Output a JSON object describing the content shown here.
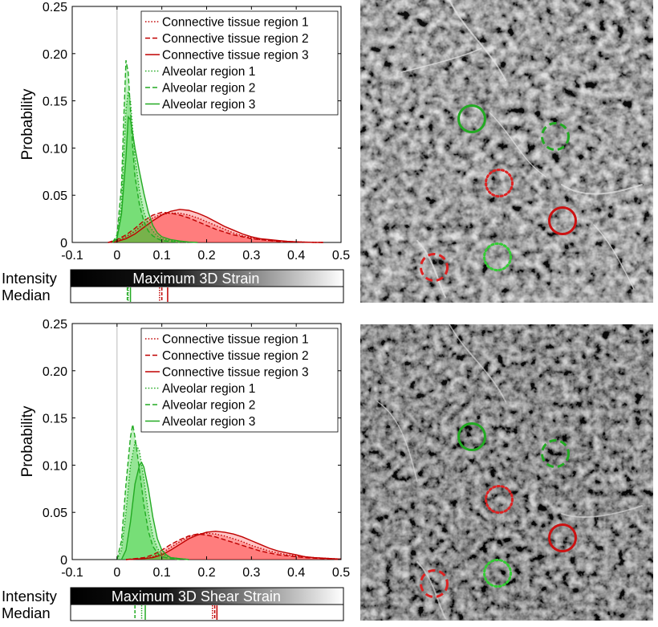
{
  "chart_data": [
    {
      "type": "area",
      "ylabel": "Probability",
      "xlim": [
        -0.1,
        0.5
      ],
      "ylim": [
        0,
        0.25
      ],
      "xticks": [
        "-0.1",
        "0",
        "0.1",
        "0.2",
        "0.3",
        "0.4",
        "0.5"
      ],
      "yticks": [
        "0",
        "0.05",
        "0.10",
        "0.15",
        "0.20",
        "0.25"
      ],
      "legend_position": "top-right",
      "series": [
        {
          "name": "Connective tissue region 1",
          "color": "#c00000",
          "style": "dotted",
          "filled": true,
          "x": [
            -0.02,
            0,
            0.02,
            0.04,
            0.06,
            0.08,
            0.1,
            0.12,
            0.14,
            0.16,
            0.18,
            0.2,
            0.22,
            0.24,
            0.26,
            0.28,
            0.3,
            0.32,
            0.34,
            0.36,
            0.38,
            0.4,
            0.42,
            0.44,
            0.46
          ],
          "y": [
            0,
            0.002,
            0.006,
            0.012,
            0.02,
            0.026,
            0.03,
            0.031,
            0.031,
            0.029,
            0.026,
            0.022,
            0.018,
            0.014,
            0.01,
            0.007,
            0.005,
            0.003,
            0.002,
            0.0015,
            0.001,
            0.0006,
            0.0003,
            0.0001,
            0
          ]
        },
        {
          "name": "Connective tissue region 2",
          "color": "#c00000",
          "style": "dashed",
          "filled": true,
          "x": [
            -0.02,
            0,
            0.02,
            0.04,
            0.06,
            0.08,
            0.1,
            0.12,
            0.14,
            0.16,
            0.18,
            0.2,
            0.22,
            0.24,
            0.26,
            0.28,
            0.3,
            0.32,
            0.34,
            0.36,
            0.38,
            0.4,
            0.42,
            0.44,
            0.46
          ],
          "y": [
            0,
            0.003,
            0.008,
            0.015,
            0.023,
            0.029,
            0.032,
            0.031,
            0.029,
            0.026,
            0.022,
            0.018,
            0.014,
            0.011,
            0.008,
            0.006,
            0.004,
            0.003,
            0.002,
            0.001,
            0.0007,
            0.0004,
            0.0002,
            0.0001,
            0
          ]
        },
        {
          "name": "Connective tissue region 3",
          "color": "#c00000",
          "style": "solid",
          "filled": true,
          "x": [
            -0.02,
            0,
            0.02,
            0.04,
            0.06,
            0.08,
            0.1,
            0.12,
            0.14,
            0.16,
            0.18,
            0.2,
            0.22,
            0.24,
            0.26,
            0.28,
            0.3,
            0.32,
            0.34,
            0.36,
            0.38,
            0.4,
            0.42,
            0.44,
            0.46
          ],
          "y": [
            0,
            0.001,
            0.004,
            0.009,
            0.016,
            0.023,
            0.029,
            0.033,
            0.035,
            0.034,
            0.031,
            0.027,
            0.022,
            0.017,
            0.013,
            0.009,
            0.006,
            0.004,
            0.003,
            0.002,
            0.0012,
            0.0007,
            0.0003,
            0.0001,
            0
          ]
        },
        {
          "name": "Alveolar region 1",
          "color": "#22aa22",
          "style": "dotted",
          "filled": true,
          "x": [
            -0.01,
            0,
            0.01,
            0.015,
            0.02,
            0.025,
            0.03,
            0.035,
            0.04,
            0.05,
            0.06,
            0.07,
            0.08,
            0.09,
            0.1,
            0.12,
            0.14,
            0.16
          ],
          "y": [
            0,
            0.005,
            0.04,
            0.09,
            0.14,
            0.16,
            0.15,
            0.12,
            0.09,
            0.055,
            0.032,
            0.02,
            0.012,
            0.007,
            0.004,
            0.002,
            0.001,
            0
          ]
        },
        {
          "name": "Alveolar region 2",
          "color": "#22aa22",
          "style": "dashed",
          "filled": true,
          "x": [
            -0.01,
            0,
            0.01,
            0.015,
            0.02,
            0.025,
            0.03,
            0.035,
            0.04,
            0.05,
            0.06,
            0.07,
            0.08,
            0.09,
            0.1,
            0.12,
            0.14
          ],
          "y": [
            0,
            0.008,
            0.06,
            0.13,
            0.193,
            0.18,
            0.14,
            0.1,
            0.07,
            0.04,
            0.022,
            0.012,
            0.007,
            0.004,
            0.002,
            0.001,
            0
          ]
        },
        {
          "name": "Alveolar region 3",
          "color": "#22aa22",
          "style": "solid",
          "filled": true,
          "x": [
            -0.01,
            0,
            0.01,
            0.02,
            0.025,
            0.03,
            0.04,
            0.05,
            0.06,
            0.07,
            0.08,
            0.09,
            0.1,
            0.12,
            0.14,
            0.16,
            0.18
          ],
          "y": [
            0,
            0.004,
            0.03,
            0.09,
            0.133,
            0.13,
            0.1,
            0.075,
            0.052,
            0.032,
            0.018,
            0.01,
            0.006,
            0.003,
            0.0015,
            0.0005,
            0
          ]
        }
      ],
      "colorbar_label": "Intensity",
      "colorbar_title": "Maximum 3D Strain",
      "median_label": "Median",
      "medians": [
        {
          "series": "Connective tissue region 1",
          "value": 0.095,
          "style": "dotted",
          "color": "#c00000"
        },
        {
          "series": "Connective tissue region 2",
          "value": 0.1,
          "style": "dashed",
          "color": "#c00000"
        },
        {
          "series": "Connective tissue region 3",
          "value": 0.113,
          "style": "solid",
          "color": "#c00000"
        },
        {
          "series": "Alveolar region 1",
          "value": 0.025,
          "style": "dotted",
          "color": "#22aa22"
        },
        {
          "series": "Alveolar region 2",
          "value": 0.023,
          "style": "dashed",
          "color": "#22aa22"
        },
        {
          "series": "Alveolar region 3",
          "value": 0.03,
          "style": "solid",
          "color": "#22aa22"
        }
      ]
    },
    {
      "type": "area",
      "ylabel": "Probability",
      "xlim": [
        -0.1,
        0.5
      ],
      "ylim": [
        0,
        0.25
      ],
      "xticks": [
        "-0.1",
        "0",
        "0.1",
        "0.2",
        "0.3",
        "0.4",
        "0.5"
      ],
      "yticks": [
        "0",
        "0.05",
        "0.10",
        "0.15",
        "0.20",
        "0.25"
      ],
      "legend_position": "top-right",
      "series": [
        {
          "name": "Connective tissue region 1",
          "color": "#c00000",
          "style": "dotted",
          "filled": true,
          "x": [
            0.02,
            0.06,
            0.08,
            0.1,
            0.12,
            0.14,
            0.16,
            0.18,
            0.2,
            0.22,
            0.24,
            0.26,
            0.28,
            0.3,
            0.32,
            0.34,
            0.36,
            0.38,
            0.4,
            0.42,
            0.44,
            0.46,
            0.48,
            0.5
          ],
          "y": [
            0,
            0.001,
            0.003,
            0.007,
            0.013,
            0.019,
            0.024,
            0.027,
            0.028,
            0.027,
            0.025,
            0.022,
            0.019,
            0.015,
            0.012,
            0.009,
            0.007,
            0.005,
            0.004,
            0.003,
            0.002,
            0.0015,
            0.001,
            0.0005
          ]
        },
        {
          "name": "Connective tissue region 2",
          "color": "#c00000",
          "style": "dashed",
          "filled": true,
          "x": [
            0.02,
            0.06,
            0.08,
            0.1,
            0.12,
            0.14,
            0.16,
            0.18,
            0.2,
            0.22,
            0.24,
            0.26,
            0.28,
            0.3,
            0.32,
            0.34,
            0.36,
            0.38,
            0.4,
            0.42,
            0.44,
            0.46,
            0.48,
            0.5
          ],
          "y": [
            0,
            0.002,
            0.005,
            0.01,
            0.016,
            0.021,
            0.025,
            0.027,
            0.026,
            0.024,
            0.021,
            0.018,
            0.015,
            0.012,
            0.009,
            0.007,
            0.005,
            0.004,
            0.003,
            0.002,
            0.0015,
            0.001,
            0.0005,
            0.0002
          ]
        },
        {
          "name": "Connective tissue region 3",
          "color": "#c00000",
          "style": "solid",
          "filled": true,
          "x": [
            0.02,
            0.06,
            0.08,
            0.1,
            0.12,
            0.14,
            0.16,
            0.18,
            0.2,
            0.22,
            0.24,
            0.26,
            0.28,
            0.3,
            0.32,
            0.34,
            0.36,
            0.38,
            0.4,
            0.42,
            0.44,
            0.46,
            0.48,
            0.5
          ],
          "y": [
            0,
            0.001,
            0.002,
            0.005,
            0.01,
            0.016,
            0.022,
            0.026,
            0.029,
            0.03,
            0.029,
            0.027,
            0.024,
            0.02,
            0.016,
            0.012,
            0.009,
            0.007,
            0.005,
            0.003,
            0.002,
            0.0015,
            0.001,
            0.0005
          ]
        },
        {
          "name": "Alveolar region 1",
          "color": "#22aa22",
          "style": "dotted",
          "filled": true,
          "x": [
            0,
            0.01,
            0.02,
            0.03,
            0.04,
            0.05,
            0.06,
            0.07,
            0.08,
            0.09,
            0.1,
            0.12,
            0.14,
            0.16
          ],
          "y": [
            0,
            0.01,
            0.05,
            0.1,
            0.124,
            0.115,
            0.085,
            0.05,
            0.025,
            0.012,
            0.006,
            0.002,
            0.001,
            0
          ]
        },
        {
          "name": "Alveolar region 2",
          "color": "#22aa22",
          "style": "dashed",
          "filled": true,
          "x": [
            0,
            0.01,
            0.02,
            0.03,
            0.035,
            0.04,
            0.05,
            0.06,
            0.07,
            0.08,
            0.09,
            0.1,
            0.12,
            0.14
          ],
          "y": [
            0,
            0.02,
            0.08,
            0.13,
            0.143,
            0.13,
            0.095,
            0.058,
            0.03,
            0.014,
            0.007,
            0.003,
            0.001,
            0
          ]
        },
        {
          "name": "Alveolar region 3",
          "color": "#22aa22",
          "style": "solid",
          "filled": true,
          "x": [
            0.01,
            0.02,
            0.03,
            0.04,
            0.05,
            0.055,
            0.06,
            0.07,
            0.08,
            0.09,
            0.1,
            0.11,
            0.12,
            0.14,
            0.16
          ],
          "y": [
            0,
            0.01,
            0.04,
            0.08,
            0.1,
            0.103,
            0.098,
            0.075,
            0.045,
            0.022,
            0.01,
            0.005,
            0.002,
            0.001,
            0
          ]
        }
      ],
      "colorbar_label": "Intensity",
      "colorbar_title": "Maximum 3D Shear Strain",
      "median_label": "Median",
      "medians": [
        {
          "series": "Connective tissue region 1",
          "value": 0.213,
          "style": "dotted",
          "color": "#c00000"
        },
        {
          "series": "Connective tissue region 2",
          "value": 0.218,
          "style": "dashed",
          "color": "#c00000"
        },
        {
          "series": "Connective tissue region 3",
          "value": 0.223,
          "style": "solid",
          "color": "#c00000"
        },
        {
          "series": "Alveolar region 1",
          "value": 0.055,
          "style": "dotted",
          "color": "#22aa22"
        },
        {
          "series": "Alveolar region 2",
          "value": 0.04,
          "style": "dashed",
          "color": "#22aa22"
        },
        {
          "series": "Alveolar region 3",
          "value": 0.063,
          "style": "solid",
          "color": "#22aa22"
        }
      ]
    }
  ],
  "images": [
    {
      "name": "top-strain-map",
      "circles": [
        {
          "region": "Alveolar region 3",
          "color": "#22aa22",
          "style": "solid"
        },
        {
          "region": "Alveolar region 2",
          "color": "#22aa22",
          "style": "dashed"
        },
        {
          "region": "Connective tissue region 1",
          "color": "#dd2222",
          "style": "dotted"
        },
        {
          "region": "Connective tissue region 3",
          "color": "#cc1111",
          "style": "solid"
        },
        {
          "region": "Connective tissue region 2",
          "color": "#dd2222",
          "style": "dashed"
        },
        {
          "region": "Alveolar region 1",
          "color": "#33cc33",
          "style": "dotted"
        }
      ]
    },
    {
      "name": "bottom-shear-strain-map",
      "circles": [
        {
          "region": "Alveolar region 3",
          "color": "#22aa22",
          "style": "solid"
        },
        {
          "region": "Alveolar region 2",
          "color": "#22aa22",
          "style": "dashed"
        },
        {
          "region": "Connective tissue region 1",
          "color": "#dd2222",
          "style": "dotted"
        },
        {
          "region": "Connective tissue region 3",
          "color": "#cc1111",
          "style": "solid"
        },
        {
          "region": "Connective tissue region 2",
          "color": "#dd2222",
          "style": "dashed"
        },
        {
          "region": "Alveolar region 1",
          "color": "#33cc33",
          "style": "dotted"
        }
      ]
    }
  ]
}
